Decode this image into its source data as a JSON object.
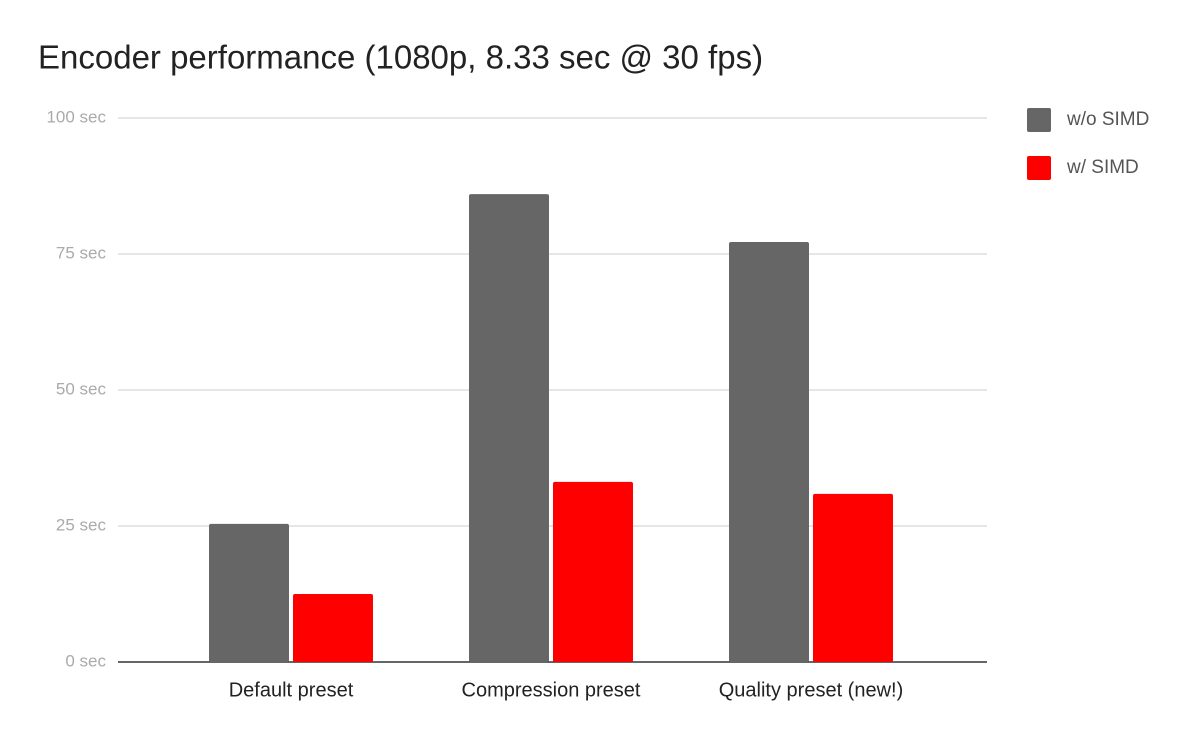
{
  "chart_data": {
    "type": "bar",
    "title": "Encoder performance (1080p, 8.33 sec @ 30 fps)",
    "categories": [
      "Default preset",
      "Compression preset",
      "Quality preset (new!)"
    ],
    "series": [
      {
        "name": "w/o SIMD",
        "color": "#666666",
        "values": [
          25.4,
          86.0,
          77.2
        ]
      },
      {
        "name": "w/ SIMD",
        "color": "#ff0000",
        "values": [
          12.5,
          33.1,
          30.9
        ]
      }
    ],
    "ylim": [
      0,
      100
    ],
    "yticks": [
      {
        "value": 0,
        "label": "0 sec"
      },
      {
        "value": 25,
        "label": "25 sec"
      },
      {
        "value": 50,
        "label": "50 sec"
      },
      {
        "value": 75,
        "label": "75 sec"
      },
      {
        "value": 100,
        "label": "100 sec"
      }
    ],
    "grid": true,
    "legend": "right"
  }
}
